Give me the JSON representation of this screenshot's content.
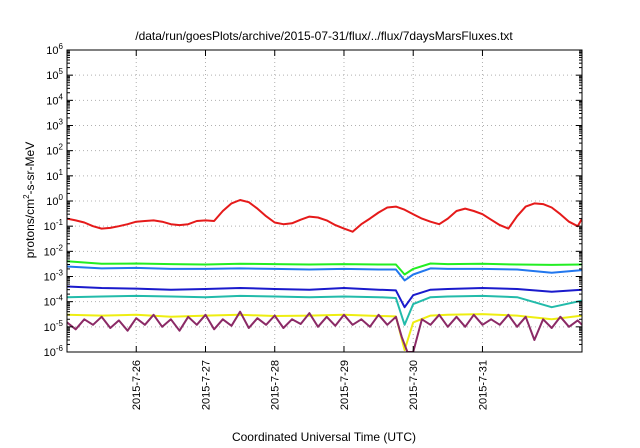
{
  "chart_data": {
    "type": "line",
    "title": "/data/run/goesPlots/archive/2015-07-31/flux/../flux/7daysMarsFluxes.txt",
    "xlabel": "Coordinated Universal Time (UTC)",
    "ylabel": "protons/cm2-s-sr-MeV",
    "ylabel_base": "protons/cm",
    "ylabel_sup": "2",
    "ylabel_rest": "-s-sr-MeV",
    "y_scale": "log",
    "ylim": [
      1e-06,
      1000000.0
    ],
    "xlim": [
      "2015-07-25T12:00",
      "2015-08-01T22:30"
    ],
    "grid": true,
    "y_ticks": [
      {
        "base": "10",
        "exp": "-6",
        "value": 1e-06
      },
      {
        "base": "10",
        "exp": "-5",
        "value": 1e-05
      },
      {
        "base": "10",
        "exp": "-4",
        "value": 0.0001
      },
      {
        "base": "10",
        "exp": "-3",
        "value": 0.001
      },
      {
        "base": "10",
        "exp": "-2",
        "value": 0.01
      },
      {
        "base": "10",
        "exp": "-1",
        "value": 0.1
      },
      {
        "base": "10",
        "exp": "0",
        "value": 1.0
      },
      {
        "base": "10",
        "exp": "1",
        "value": 10.0
      },
      {
        "base": "10",
        "exp": "2",
        "value": 100.0
      },
      {
        "base": "10",
        "exp": "3",
        "value": 1000.0
      },
      {
        "base": "10",
        "exp": "4",
        "value": 10000.0
      },
      {
        "base": "10",
        "exp": "5",
        "value": 100000.0
      },
      {
        "base": "10",
        "exp": "6",
        "value": 1000000.0
      }
    ],
    "x_ticks": [
      {
        "label": "2015-7-26",
        "value": "2015-07-26T12:00"
      },
      {
        "label": "2015-7-27",
        "value": "2015-07-27T12:00"
      },
      {
        "label": "2015-7-28",
        "value": "2015-07-28T12:00"
      },
      {
        "label": "2015-7-29",
        "value": "2015-07-29T12:00"
      },
      {
        "label": "2015-7-30",
        "value": "2015-07-30T12:00"
      },
      {
        "label": "2015-7-31",
        "value": "2015-07-31T12:00"
      }
    ],
    "series": [
      {
        "color": "#e51a1a",
        "x": [
          "2015-07-25T12:00",
          "2015-07-25T15:00",
          "2015-07-25T18:00",
          "2015-07-25T21:00",
          "2015-07-26T00:00",
          "2015-07-26T03:00",
          "2015-07-26T06:00",
          "2015-07-26T09:00",
          "2015-07-26T12:00",
          "2015-07-26T15:00",
          "2015-07-26T18:00",
          "2015-07-26T21:00",
          "2015-07-27T00:00",
          "2015-07-27T03:00",
          "2015-07-27T06:00",
          "2015-07-27T09:00",
          "2015-07-27T12:00",
          "2015-07-27T15:00",
          "2015-07-27T18:00",
          "2015-07-27T21:00",
          "2015-07-28T00:00",
          "2015-07-28T03:00",
          "2015-07-28T06:00",
          "2015-07-28T09:00",
          "2015-07-28T12:00",
          "2015-07-28T15:00",
          "2015-07-28T18:00",
          "2015-07-28T21:00",
          "2015-07-29T00:00",
          "2015-07-29T03:00",
          "2015-07-29T06:00",
          "2015-07-29T09:00",
          "2015-07-29T12:00",
          "2015-07-29T15:00",
          "2015-07-29T18:00",
          "2015-07-29T21:00",
          "2015-07-30T00:00",
          "2015-07-30T03:00",
          "2015-07-30T06:00",
          "2015-07-30T09:00",
          "2015-07-30T12:00",
          "2015-07-30T15:00",
          "2015-07-30T18:00",
          "2015-07-30T21:00",
          "2015-07-31T00:00",
          "2015-07-31T03:00",
          "2015-07-31T06:00",
          "2015-07-31T09:00",
          "2015-07-31T12:00",
          "2015-07-31T15:00",
          "2015-07-31T18:00",
          "2015-07-31T21:00",
          "2015-08-01T00:00",
          "2015-08-01T03:00",
          "2015-08-01T06:00",
          "2015-08-01T09:00",
          "2015-08-01T12:00",
          "2015-08-01T15:00",
          "2015-08-01T18:00",
          "2015-08-01T21:00",
          "2015-08-01T22:30"
        ],
        "values": [
          0.2,
          0.17,
          0.14,
          0.1,
          0.08,
          0.085,
          0.1,
          0.12,
          0.15,
          0.16,
          0.17,
          0.15,
          0.12,
          0.11,
          0.12,
          0.16,
          0.17,
          0.16,
          0.4,
          0.8,
          1.1,
          0.9,
          0.5,
          0.25,
          0.14,
          0.12,
          0.13,
          0.18,
          0.24,
          0.22,
          0.17,
          0.11,
          0.08,
          0.06,
          0.12,
          0.2,
          0.35,
          0.55,
          0.6,
          0.45,
          0.3,
          0.2,
          0.15,
          0.12,
          0.2,
          0.4,
          0.5,
          0.4,
          0.3,
          0.18,
          0.11,
          0.08,
          0.25,
          0.6,
          0.8,
          0.75,
          0.55,
          0.3,
          0.15,
          0.1,
          0.2
        ]
      },
      {
        "color": "#22ee22",
        "x": [
          "2015-07-25T12:00",
          "2015-07-26T00:00",
          "2015-07-26T12:00",
          "2015-07-27T00:00",
          "2015-07-27T12:00",
          "2015-07-28T00:00",
          "2015-07-28T12:00",
          "2015-07-29T00:00",
          "2015-07-29T12:00",
          "2015-07-30T00:00",
          "2015-07-30T06:00",
          "2015-07-30T09:00",
          "2015-07-30T12:00",
          "2015-07-30T18:00",
          "2015-07-31T00:00",
          "2015-07-31T12:00",
          "2015-08-01T00:00",
          "2015-08-01T12:00",
          "2015-08-01T22:30"
        ],
        "values": [
          0.004,
          0.0032,
          0.0033,
          0.0031,
          0.003,
          0.0032,
          0.0031,
          0.003,
          0.0031,
          0.003,
          0.003,
          0.0012,
          0.002,
          0.0033,
          0.0031,
          0.0032,
          0.003,
          0.0029,
          0.003
        ]
      },
      {
        "color": "#2277ee",
        "x": [
          "2015-07-25T12:00",
          "2015-07-26T00:00",
          "2015-07-26T12:00",
          "2015-07-27T00:00",
          "2015-07-27T12:00",
          "2015-07-28T00:00",
          "2015-07-28T12:00",
          "2015-07-29T00:00",
          "2015-07-29T12:00",
          "2015-07-30T00:00",
          "2015-07-30T06:00",
          "2015-07-30T09:00",
          "2015-07-30T12:00",
          "2015-07-30T18:00",
          "2015-07-31T00:00",
          "2015-07-31T12:00",
          "2015-08-01T00:00",
          "2015-08-01T12:00",
          "2015-08-01T22:30"
        ],
        "values": [
          0.0025,
          0.0021,
          0.0022,
          0.002,
          0.002,
          0.0021,
          0.002,
          0.0019,
          0.002,
          0.0019,
          0.0019,
          0.0007,
          0.0012,
          0.0021,
          0.002,
          0.002,
          0.0019,
          0.0014,
          0.0018
        ]
      },
      {
        "color": "#1a1acc",
        "x": [
          "2015-07-25T12:00",
          "2015-07-26T00:00",
          "2015-07-26T12:00",
          "2015-07-27T00:00",
          "2015-07-27T12:00",
          "2015-07-28T00:00",
          "2015-07-28T12:00",
          "2015-07-29T00:00",
          "2015-07-29T12:00",
          "2015-07-30T00:00",
          "2015-07-30T06:00",
          "2015-07-30T09:00",
          "2015-07-30T12:00",
          "2015-07-30T18:00",
          "2015-07-31T00:00",
          "2015-07-31T12:00",
          "2015-08-01T00:00",
          "2015-08-01T12:00",
          "2015-08-01T22:30"
        ],
        "values": [
          0.0004,
          0.00035,
          0.00033,
          0.0003,
          0.00032,
          0.00035,
          0.00032,
          0.0003,
          0.00035,
          0.0003,
          0.00028,
          6e-05,
          0.00018,
          0.0003,
          0.00032,
          0.00035,
          0.00032,
          0.00025,
          0.0003
        ]
      },
      {
        "color": "#22bbaa",
        "x": [
          "2015-07-25T12:00",
          "2015-07-26T00:00",
          "2015-07-26T12:00",
          "2015-07-27T00:00",
          "2015-07-27T12:00",
          "2015-07-28T00:00",
          "2015-07-28T12:00",
          "2015-07-29T00:00",
          "2015-07-29T12:00",
          "2015-07-30T00:00",
          "2015-07-30T06:00",
          "2015-07-30T09:00",
          "2015-07-30T12:00",
          "2015-07-30T18:00",
          "2015-07-31T00:00",
          "2015-07-31T12:00",
          "2015-08-01T00:00",
          "2015-08-01T12:00",
          "2015-08-01T22:30"
        ],
        "values": [
          0.00015,
          0.00016,
          0.00017,
          0.00016,
          0.00015,
          0.00017,
          0.00016,
          0.00015,
          0.00016,
          0.00015,
          0.00014,
          1.2e-05,
          8e-05,
          0.00015,
          0.00016,
          0.00017,
          0.00015,
          6e-05,
          0.00011
        ]
      },
      {
        "color": "#eeee11",
        "x": [
          "2015-07-25T12:00",
          "2015-07-26T00:00",
          "2015-07-26T12:00",
          "2015-07-27T00:00",
          "2015-07-27T12:00",
          "2015-07-28T00:00",
          "2015-07-28T12:00",
          "2015-07-29T00:00",
          "2015-07-29T12:00",
          "2015-07-30T00:00",
          "2015-07-30T06:00",
          "2015-07-30T09:00",
          "2015-07-30T12:00",
          "2015-07-30T18:00",
          "2015-07-31T00:00",
          "2015-07-31T12:00",
          "2015-08-01T00:00",
          "2015-08-01T12:00",
          "2015-08-01T22:30"
        ],
        "values": [
          3e-05,
          2.8e-05,
          3e-05,
          2.5e-05,
          2.8e-05,
          3e-05,
          2.7e-05,
          2.8e-05,
          3e-05,
          2.7e-05,
          2.6e-05,
          1.2e-06,
          1.5e-05,
          2.8e-05,
          3e-05,
          3.2e-05,
          2.8e-05,
          2e-05,
          2.8e-05
        ]
      },
      {
        "color": "#8b2a66",
        "x": [
          "2015-07-25T12:00",
          "2015-07-25T15:00",
          "2015-07-25T18:00",
          "2015-07-25T21:00",
          "2015-07-26T00:00",
          "2015-07-26T03:00",
          "2015-07-26T06:00",
          "2015-07-26T09:00",
          "2015-07-26T12:00",
          "2015-07-26T15:00",
          "2015-07-26T18:00",
          "2015-07-26T21:00",
          "2015-07-27T00:00",
          "2015-07-27T03:00",
          "2015-07-27T06:00",
          "2015-07-27T09:00",
          "2015-07-27T12:00",
          "2015-07-27T15:00",
          "2015-07-27T18:00",
          "2015-07-27T21:00",
          "2015-07-28T00:00",
          "2015-07-28T03:00",
          "2015-07-28T06:00",
          "2015-07-28T09:00",
          "2015-07-28T12:00",
          "2015-07-28T15:00",
          "2015-07-28T18:00",
          "2015-07-28T21:00",
          "2015-07-29T00:00",
          "2015-07-29T03:00",
          "2015-07-29T06:00",
          "2015-07-29T09:00",
          "2015-07-29T12:00",
          "2015-07-29T15:00",
          "2015-07-29T18:00",
          "2015-07-29T21:00",
          "2015-07-30T00:00",
          "2015-07-30T03:00",
          "2015-07-30T06:00",
          "2015-07-30T08:00",
          "2015-07-30T10:00",
          "2015-07-30T12:00",
          "2015-07-30T15:00",
          "2015-07-30T18:00",
          "2015-07-30T21:00",
          "2015-07-31T00:00",
          "2015-07-31T03:00",
          "2015-07-31T06:00",
          "2015-07-31T09:00",
          "2015-07-31T12:00",
          "2015-07-31T15:00",
          "2015-07-31T18:00",
          "2015-07-31T21:00",
          "2015-08-01T00:00",
          "2015-08-01T03:00",
          "2015-08-01T06:00",
          "2015-08-01T09:00",
          "2015-08-01T12:00",
          "2015-08-01T15:00",
          "2015-08-01T18:00",
          "2015-08-01T21:00",
          "2015-08-01T22:30"
        ],
        "values": [
          1.5e-05,
          8e-06,
          2e-05,
          1.2e-05,
          2.5e-05,
          9e-06,
          1.8e-05,
          7e-06,
          2.2e-05,
          1.2e-05,
          3e-05,
          1e-05,
          2e-05,
          7e-06,
          2.5e-05,
          1.2e-05,
          3e-05,
          8e-06,
          2e-05,
          1.1e-05,
          4e-05,
          9e-06,
          2.2e-05,
          1.2e-05,
          2.8e-05,
          9e-06,
          2e-05,
          1.3e-05,
          3.5e-05,
          1e-05,
          2.5e-05,
          1.1e-05,
          3e-05,
          1.2e-05,
          2e-05,
          1e-05,
          3e-05,
          1.2e-05,
          2.5e-05,
          4e-06,
          6e-07,
          1e-06,
          2e-05,
          1.2e-05,
          3e-05,
          1e-05,
          2.5e-05,
          1e-05,
          3e-05,
          1.2e-05,
          2e-05,
          1.2e-05,
          3e-05,
          1e-05,
          2.5e-05,
          3e-06,
          2e-05,
          9e-06,
          2.5e-05,
          1e-05,
          1.8e-05,
          1.2e-05
        ]
      }
    ]
  }
}
